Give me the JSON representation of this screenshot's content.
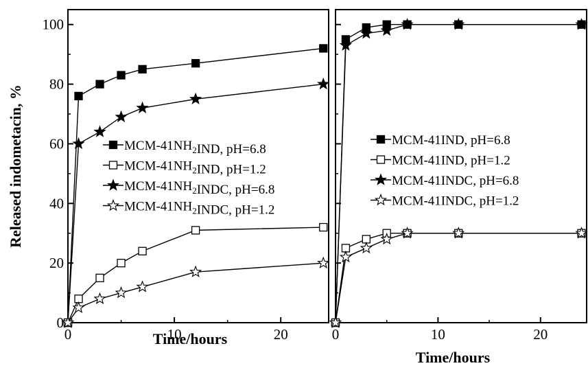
{
  "chart_data": [
    {
      "type": "line",
      "panel": "left",
      "xlabel": "Time/hours",
      "ylabel": "Released indometacin, %",
      "xlim": [
        0,
        24.5
      ],
      "ylim": [
        0,
        105
      ],
      "xticks": [
        0,
        10,
        20
      ],
      "yticks": [
        0,
        20,
        40,
        60,
        80,
        100
      ],
      "grid": false,
      "legend_position": "middle-left",
      "series": [
        {
          "name": "MCM-41NH₂IND,  pH=6.8",
          "marker": "square-filled",
          "x": [
            0,
            1,
            3,
            5,
            7,
            12,
            24
          ],
          "y": [
            0,
            76,
            80,
            83,
            85,
            87,
            92
          ]
        },
        {
          "name": "MCM-41NH₂IND,  pH=1.2",
          "marker": "square-open",
          "x": [
            0,
            1,
            3,
            5,
            7,
            12,
            24
          ],
          "y": [
            0,
            8,
            15,
            20,
            24,
            31,
            32
          ]
        },
        {
          "name": "MCM-41NH₂INDC,  pH=6.8",
          "marker": "star-filled",
          "x": [
            0,
            1,
            3,
            5,
            7,
            12,
            24
          ],
          "y": [
            0,
            60,
            64,
            69,
            72,
            75,
            80
          ]
        },
        {
          "name": "MCM-41NH₂INDC,  pH=1.2",
          "marker": "star-open",
          "x": [
            0,
            1,
            3,
            5,
            7,
            12,
            24
          ],
          "y": [
            0,
            5,
            8,
            10,
            12,
            17,
            20
          ]
        }
      ]
    },
    {
      "type": "line",
      "panel": "right",
      "xlabel": "Time/hours",
      "ylabel": "",
      "xlim": [
        0,
        24.5
      ],
      "ylim": [
        0,
        105
      ],
      "xticks": [
        0,
        10,
        20
      ],
      "yticks": [
        0,
        20,
        40,
        60,
        80,
        100
      ],
      "grid": false,
      "legend_position": "middle",
      "series": [
        {
          "name": "MCM-41IND,  pH=6.8",
          "marker": "square-filled",
          "x": [
            0,
            1,
            3,
            5,
            7,
            12,
            24
          ],
          "y": [
            0,
            95,
            99,
            100,
            100,
            100,
            100
          ]
        },
        {
          "name": "MCM-41IND,  pH=1.2",
          "marker": "square-open",
          "x": [
            0,
            1,
            3,
            5,
            7,
            12,
            24
          ],
          "y": [
            0,
            25,
            28,
            30,
            30,
            30,
            30
          ]
        },
        {
          "name": "MCM-41INDC,  pH=6.8",
          "marker": "star-filled",
          "x": [
            0,
            1,
            3,
            5,
            7,
            12,
            24
          ],
          "y": [
            0,
            93,
            97,
            98,
            100,
            100,
            100
          ]
        },
        {
          "name": "MCM-41INDC,  pH=1.2",
          "marker": "star-open",
          "x": [
            0,
            1,
            3,
            5,
            7,
            12,
            24
          ],
          "y": [
            0,
            22,
            25,
            28,
            30,
            30,
            30
          ]
        }
      ]
    }
  ]
}
